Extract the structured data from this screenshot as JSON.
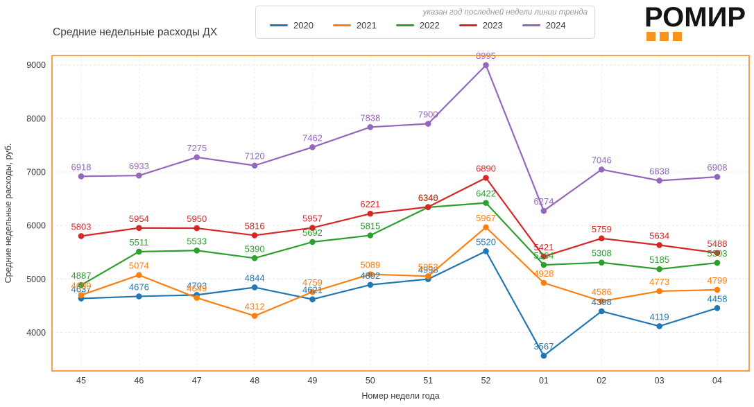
{
  "header": {
    "annotation": "указан год последней недели линии тренда",
    "logo_text": "РОМИР",
    "logo_accent_color": "#f7941d"
  },
  "chart_data": {
    "type": "line",
    "title": "Средние недельные расходы ДХ",
    "xlabel": "Номер недели года",
    "ylabel": "Средние недельные расходы, руб.",
    "categories": [
      "45",
      "46",
      "47",
      "48",
      "49",
      "50",
      "51",
      "52",
      "01",
      "02",
      "03",
      "04"
    ],
    "yticks": [
      4000,
      5000,
      6000,
      7000,
      8000,
      9000
    ],
    "ylim": [
      3283,
      9176
    ],
    "grid": "dashed",
    "legend_position": "top-center",
    "border_color": "#ff7f0e",
    "tick_color": "#3a3a3a",
    "grid_color": "#e7e7e7",
    "markers": true,
    "data_labels": true,
    "series": [
      {
        "name": "2020",
        "color": "#1f77b4",
        "values": [
          4637,
          4676,
          4703,
          4844,
          4621,
          4892,
          4998,
          5520,
          3567,
          4398,
          4119,
          4458
        ]
      },
      {
        "name": "2021",
        "color": "#ff7f0e",
        "values": [
          4699,
          5074,
          4649,
          4312,
          4759,
          5089,
          5053,
          5967,
          4928,
          4586,
          4773,
          4799
        ]
      },
      {
        "name": "2022",
        "color": "#2ca02c",
        "values": [
          4887,
          5511,
          5533,
          5390,
          5692,
          5815,
          6340,
          6422,
          5264,
          5308,
          5185,
          5303
        ]
      },
      {
        "name": "2023",
        "color": "#d62728",
        "values": [
          5803,
          5954,
          5950,
          5816,
          5957,
          6221,
          6346,
          6890,
          5421,
          5759,
          5634,
          5488
        ]
      },
      {
        "name": "2024",
        "color": "#9467bd",
        "values": [
          6918,
          6933,
          7275,
          7120,
          7462,
          7838,
          7900,
          8995,
          6274,
          7046,
          6838,
          6908
        ]
      }
    ]
  }
}
